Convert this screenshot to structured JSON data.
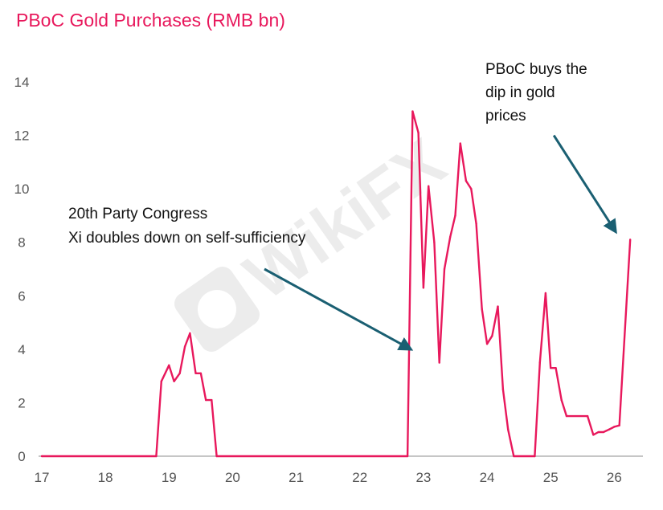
{
  "chart_data": {
    "type": "line",
    "title": "PBoC Gold Purchases (RMB bn)",
    "xlabel": "",
    "ylabel": "",
    "xlim": [
      16.95,
      26.45
    ],
    "ylim": [
      0,
      14
    ],
    "x_ticks": [
      17,
      18,
      19,
      20,
      21,
      22,
      23,
      24,
      25,
      26
    ],
    "x_tick_labels": [
      "17",
      "18",
      "19",
      "20",
      "21",
      "22",
      "23",
      "24",
      "25",
      "26"
    ],
    "y_ticks": [
      0,
      2,
      4,
      6,
      8,
      10,
      12,
      14
    ],
    "y_tick_labels": [
      "0",
      "2",
      "4",
      "6",
      "8",
      "10",
      "12",
      "14"
    ],
    "grid": false,
    "legend": "none",
    "series": [
      {
        "color": "#e8185c",
        "points": [
          [
            17.0,
            0
          ],
          [
            18.8,
            0
          ],
          [
            18.88,
            2.8
          ],
          [
            19.0,
            3.4
          ],
          [
            19.08,
            2.8
          ],
          [
            19.17,
            3.1
          ],
          [
            19.25,
            4.1
          ],
          [
            19.33,
            4.6
          ],
          [
            19.42,
            3.1
          ],
          [
            19.5,
            3.1
          ],
          [
            19.58,
            2.1
          ],
          [
            19.67,
            2.1
          ],
          [
            19.75,
            0
          ],
          [
            22.75,
            0
          ],
          [
            22.83,
            12.9
          ],
          [
            22.92,
            12.1
          ],
          [
            23.0,
            6.3
          ],
          [
            23.08,
            10.1
          ],
          [
            23.17,
            8.0
          ],
          [
            23.25,
            3.5
          ],
          [
            23.33,
            7.0
          ],
          [
            23.42,
            8.2
          ],
          [
            23.5,
            9.0
          ],
          [
            23.58,
            11.7
          ],
          [
            23.67,
            10.3
          ],
          [
            23.75,
            10.0
          ],
          [
            23.83,
            8.7
          ],
          [
            23.92,
            5.5
          ],
          [
            24.0,
            4.2
          ],
          [
            24.08,
            4.5
          ],
          [
            24.17,
            5.6
          ],
          [
            24.25,
            2.5
          ],
          [
            24.33,
            1.0
          ],
          [
            24.42,
            0
          ],
          [
            24.75,
            0
          ],
          [
            24.83,
            3.5
          ],
          [
            24.92,
            6.1
          ],
          [
            25.0,
            3.3
          ],
          [
            25.08,
            3.3
          ],
          [
            25.17,
            2.1
          ],
          [
            25.25,
            1.5
          ],
          [
            25.58,
            1.5
          ],
          [
            25.67,
            0.8
          ],
          [
            25.75,
            0.9
          ],
          [
            25.83,
            0.9
          ],
          [
            25.92,
            1.0
          ],
          [
            26.0,
            1.1
          ],
          [
            26.08,
            1.15
          ],
          [
            26.25,
            8.1
          ]
        ]
      }
    ],
    "annotations": [
      {
        "lines": [
          "20th Party Congress",
          "Xi doubles down on self-sufficiency"
        ],
        "arrow_color": "#1a5f72",
        "arrow_from": [
          20.5,
          7.0
        ],
        "arrow_to": [
          22.8,
          4.0
        ]
      },
      {
        "lines": [
          "PBoC buys the",
          "dip in gold",
          "prices"
        ],
        "arrow_color": "#1a5f72",
        "arrow_from": [
          25.05,
          12.0
        ],
        "arrow_to": [
          26.02,
          8.4
        ]
      }
    ],
    "watermark": "WikiFX"
  }
}
